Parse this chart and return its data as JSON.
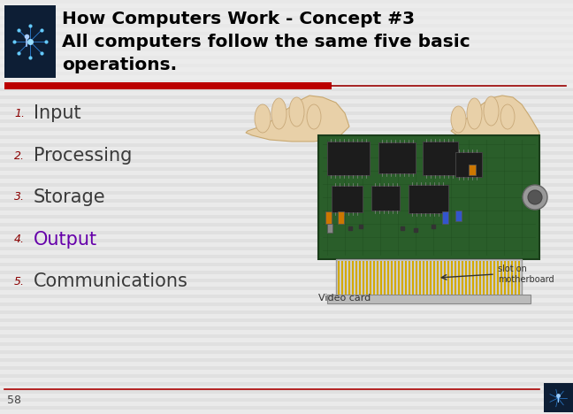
{
  "title_line1": "How Computers Work - Concept #3",
  "title_line2": "All computers follow the same five basic",
  "title_line3": "operations.",
  "bg_color": "#e0e0e0",
  "stripe_light": "#e8e8e8",
  "stripe_dark": "#d8d8d8",
  "header_bg_color": "#f5f5f5",
  "red_bar_color": "#cc0000",
  "red_line_color": "#aa0000",
  "items": [
    {
      "num": "1.",
      "text": "Input",
      "color": "#3a3a3a",
      "num_color": "#8b0000"
    },
    {
      "num": "2.",
      "text": "Processing",
      "color": "#3a3a3a",
      "num_color": "#8b0000"
    },
    {
      "num": "3.",
      "text": "Storage",
      "color": "#3a3a3a",
      "num_color": "#8b0000"
    },
    {
      "num": "4.",
      "text": "Output",
      "color": "#6600aa",
      "num_color": "#8b0000"
    },
    {
      "num": "5.",
      "text": "Communications",
      "color": "#3a3a3a",
      "num_color": "#8b0000"
    }
  ],
  "footer_num": "58",
  "footer_color": "#444444",
  "title_color": "#000000",
  "video_card_label": "Video card",
  "slot_label": "slot on\nmotherboard",
  "figw": 6.48,
  "figh": 4.68,
  "dpi": 100
}
